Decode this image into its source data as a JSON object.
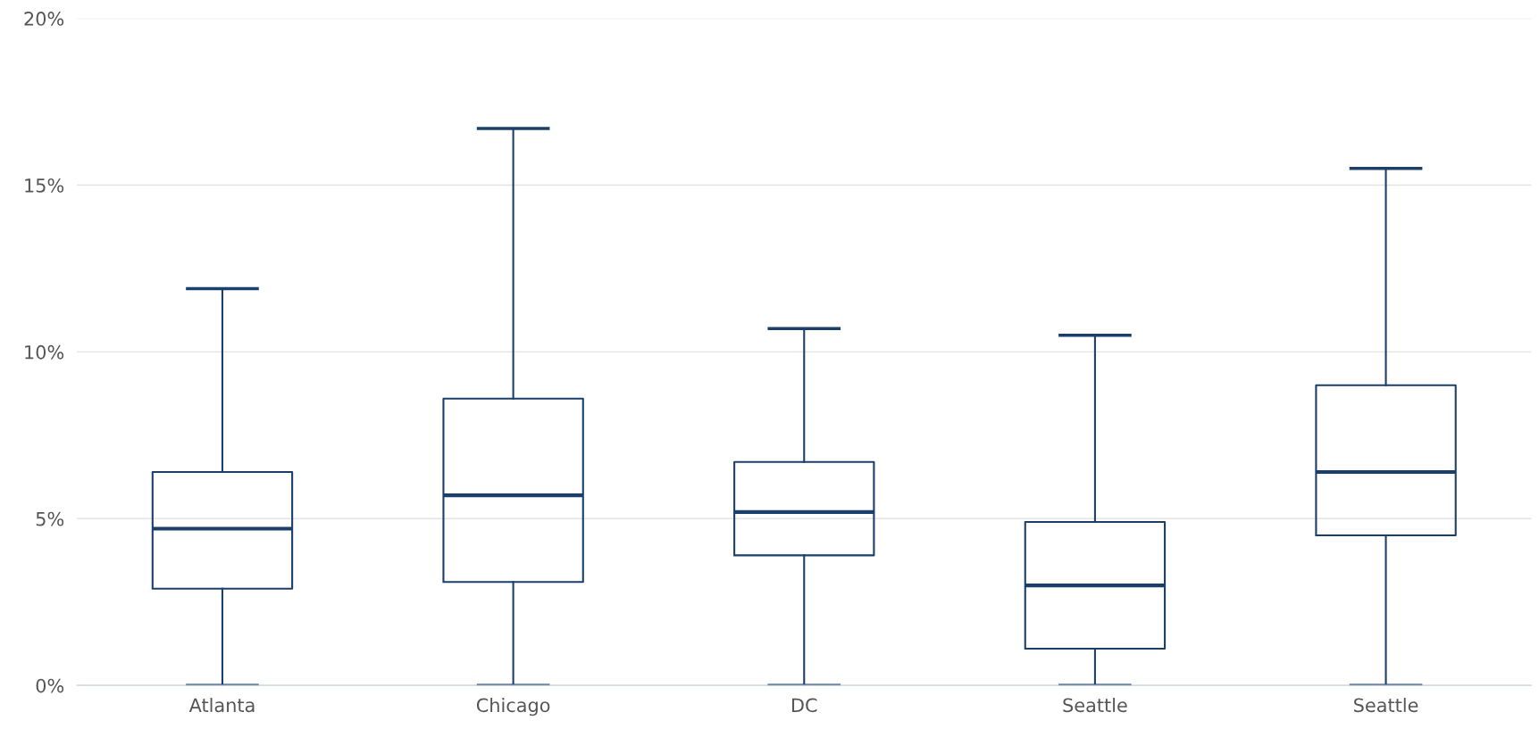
{
  "chart_data": {
    "type": "box",
    "categories": [
      "Atlanta",
      "Chicago",
      "DC",
      "Seattle",
      "Seattle"
    ],
    "boxes": [
      {
        "low": 0,
        "q1": 2.9,
        "median": 4.7,
        "q3": 6.4,
        "high": 11.9
      },
      {
        "low": 0,
        "q1": 3.1,
        "median": 5.7,
        "q3": 8.6,
        "high": 16.7
      },
      {
        "low": 0,
        "q1": 3.9,
        "median": 5.2,
        "q3": 6.7,
        "high": 10.7
      },
      {
        "low": 0,
        "q1": 1.1,
        "median": 3.0,
        "q3": 4.9,
        "high": 10.5
      },
      {
        "low": 0,
        "q1": 4.5,
        "median": 6.4,
        "q3": 9.0,
        "high": 15.5
      }
    ],
    "color": "#1b3f6b",
    "ylim": [
      0,
      20
    ],
    "yticks": [
      {
        "value": 0,
        "label": "0%"
      },
      {
        "value": 5,
        "label": "5%"
      },
      {
        "value": 10,
        "label": "10%"
      },
      {
        "value": 15,
        "label": "15%"
      },
      {
        "value": 20,
        "label": "20%"
      }
    ],
    "grid": "y"
  }
}
